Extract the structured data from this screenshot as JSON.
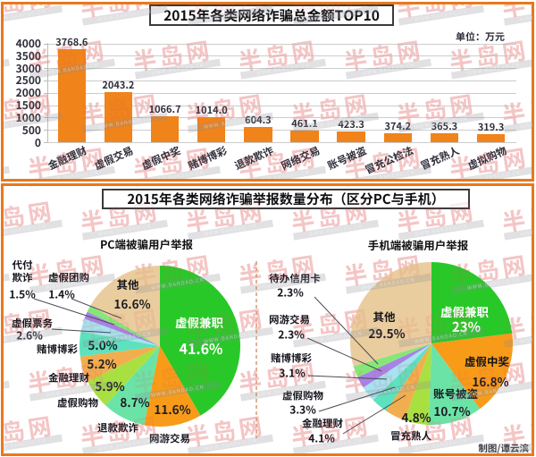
{
  "panel_top": {
    "title": "2015年各类网络诈骗总金额TOP10",
    "unit_label": "单位：万元"
  },
  "panel_bottom": {
    "title": "2015年各类网络诈骗举报数量分布（区分PC与手机）",
    "left_subtitle": "PC端被骗用户举报",
    "right_subtitle": "手机端被骗用户举报",
    "credit": "制图/谭云滨"
  },
  "watermark": {
    "text": "半岛网",
    "band_text": "WWW.BANDAO.CN"
  },
  "colors": {
    "frame_orange": "#E8791B",
    "bar_orange": "#F0831A",
    "title_border": "#3B3B3B",
    "grid_line": "#CCCCCC",
    "text_dark": "#2E2E3A",
    "divider": "#CC8055",
    "watermark_red": "#E05252",
    "pie_palette": [
      "#29C829",
      "#F89B19",
      "#6CE3A6",
      "#A9E041",
      "#F2AE4E",
      "#5CE2BE",
      "#A5E3F0",
      "#A783E5",
      "#86E678",
      "#EACD9E"
    ]
  },
  "chart_data": [
    {
      "type": "bar",
      "title": "2015年各类网络诈骗总金额TOP10",
      "unit": "万元",
      "categories": [
        "金融理财",
        "虚假交易",
        "虚假中奖",
        "赌博博彩",
        "退款欺诈",
        "网络交易",
        "账号被盗",
        "冒充公检法",
        "冒充熟人",
        "虚拟购物"
      ],
      "values": [
        3768.6,
        2043.2,
        1066.7,
        1014.0,
        604.3,
        461.1,
        423.3,
        374.2,
        365.3,
        319.3
      ],
      "value_labels": [
        "3768.6",
        "2043.2",
        "1066.7",
        "1014.0",
        "604.3",
        "461.1",
        "423.3",
        "374.2",
        "365.3",
        "319.3"
      ],
      "ylim": [
        0,
        4000
      ],
      "yticks": [
        4000,
        3500,
        3000,
        2500,
        2000,
        1500,
        1000,
        500,
        0
      ],
      "grid": "on",
      "legend": "none"
    },
    {
      "type": "pie",
      "title": "PC端被骗用户举报",
      "labels": [
        "虚假兼职",
        "网游交易",
        "退款欺诈",
        "虚假购物",
        "金融理财",
        "赌博博彩",
        "虚假票务",
        "代付欺诈",
        "虚假团购",
        "其他"
      ],
      "values": [
        41.6,
        11.6,
        8.7,
        5.9,
        5.2,
        5.0,
        2.6,
        1.5,
        1.4,
        16.6
      ],
      "pct_labels": [
        "41.6%",
        "11.6%",
        "8.7%",
        "5.9%",
        "5.2%",
        "5.0%",
        "2.6%",
        "1.5%",
        "1.4%",
        "16.6%"
      ]
    },
    {
      "type": "pie",
      "title": "手机端被骗用户举报",
      "labels": [
        "虚假兼职",
        "虚假中奖",
        "账号被盗",
        "冒充熟人",
        "金融理财",
        "虚假购物",
        "赌博博彩",
        "网游交易",
        "待办信用卡",
        "其他"
      ],
      "values": [
        23,
        16.8,
        10.7,
        4.8,
        4.1,
        3.3,
        3.1,
        2.3,
        2.3,
        29.5
      ],
      "pct_labels": [
        "23%",
        "16.8%",
        "10.7%",
        "4.8%",
        "4.1%",
        "3.3%",
        "3.1%",
        "2.3%",
        "2.3%",
        "29.5%"
      ]
    }
  ]
}
